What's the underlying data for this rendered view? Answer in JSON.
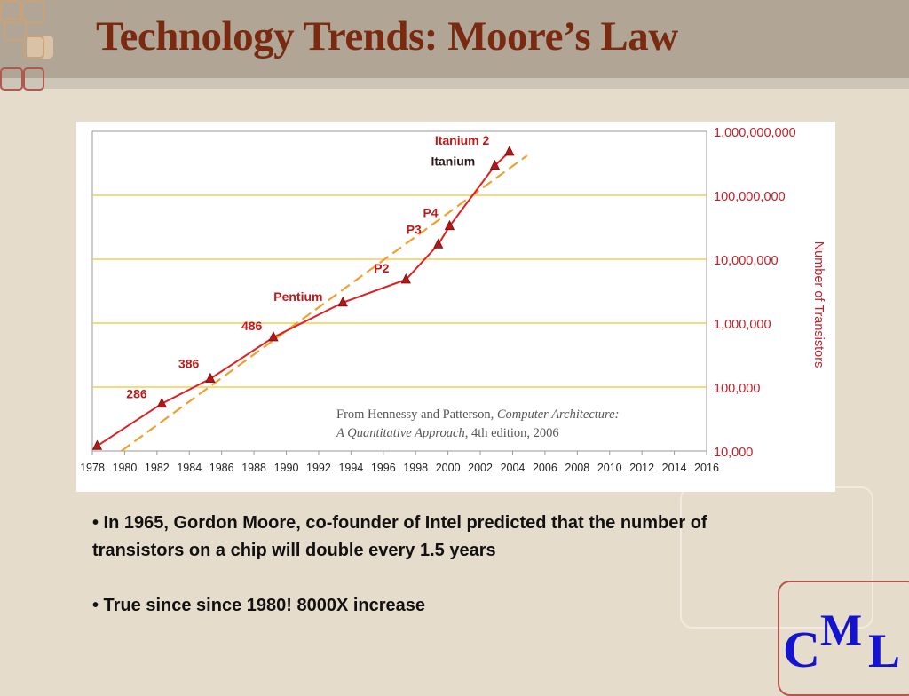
{
  "slide": {
    "title": "Technology Trends: Moore’s Law",
    "bullets": [
      "• In 1965, Gordon Moore, co-founder of Intel predicted that the number of transistors on a chip will double every 1.5 years",
      "• True since since 1980! 8000X increase"
    ],
    "logo": {
      "c": "C",
      "m": "M",
      "l": "L"
    }
  },
  "chart_data": {
    "type": "line",
    "title": "",
    "xlabel": "",
    "ylabel": "Number of Transistors",
    "y_scale": "log",
    "xlim": [
      1978,
      2016
    ],
    "ylim": [
      10000,
      1000000000
    ],
    "x_ticks": [
      "1978",
      "1980",
      "1982",
      "1984",
      "1986",
      "1988",
      "1990",
      "1992",
      "1994",
      "1996",
      "1998",
      "2000",
      "2002",
      "2004",
      "2006",
      "2008",
      "2010",
      "2012",
      "2014",
      "2016"
    ],
    "y_ticks": [
      {
        "value": 10000,
        "label": "10,000"
      },
      {
        "value": 100000,
        "label": "100,000"
      },
      {
        "value": 1000000,
        "label": "1,000,000"
      },
      {
        "value": 10000000,
        "label": "10,000,000"
      },
      {
        "value": 100000000,
        "label": "100,000,000"
      },
      {
        "value": 1000000000,
        "label": "1,000,000,000"
      }
    ],
    "series": [
      {
        "color": "#e02020",
        "points": [
          {
            "x": 1978.3,
            "y": 12000,
            "label": ""
          },
          {
            "x": 1982.3,
            "y": 55000,
            "label": "286"
          },
          {
            "x": 1985.3,
            "y": 135000,
            "label": "386"
          },
          {
            "x": 1989.2,
            "y": 600000,
            "label": "486"
          },
          {
            "x": 1993.5,
            "y": 2100000,
            "label": "Pentium"
          },
          {
            "x": 1997.4,
            "y": 4800000,
            "label": "P2"
          },
          {
            "x": 1999.4,
            "y": 17000000,
            "label": "P3"
          },
          {
            "x": 2000.1,
            "y": 33000000,
            "label": "P4"
          },
          {
            "x": 2002.9,
            "y": 290000000,
            "label": "Itanium"
          },
          {
            "x": 2003.8,
            "y": 480000000,
            "label": "Itanium 2"
          }
        ]
      }
    ],
    "trend": {
      "color": "#f0a030",
      "start": {
        "x": 1979.8,
        "y": 10000
      },
      "end": {
        "x": 2004.9,
        "y": 420000000
      }
    },
    "source_note": {
      "prefix": "From Hennessy and Patterson, ",
      "italic1": "Computer Architecture:",
      "italic2": "A Quantitative Approach",
      "suffix": ", 4th edition, 2006"
    }
  },
  "colors": {
    "title": "#7a2a10",
    "header": "#b1a695",
    "background": "#e6dccb",
    "gridline": "#f5c030",
    "axis_label": "#c0202a",
    "logo": "#1414d0"
  }
}
